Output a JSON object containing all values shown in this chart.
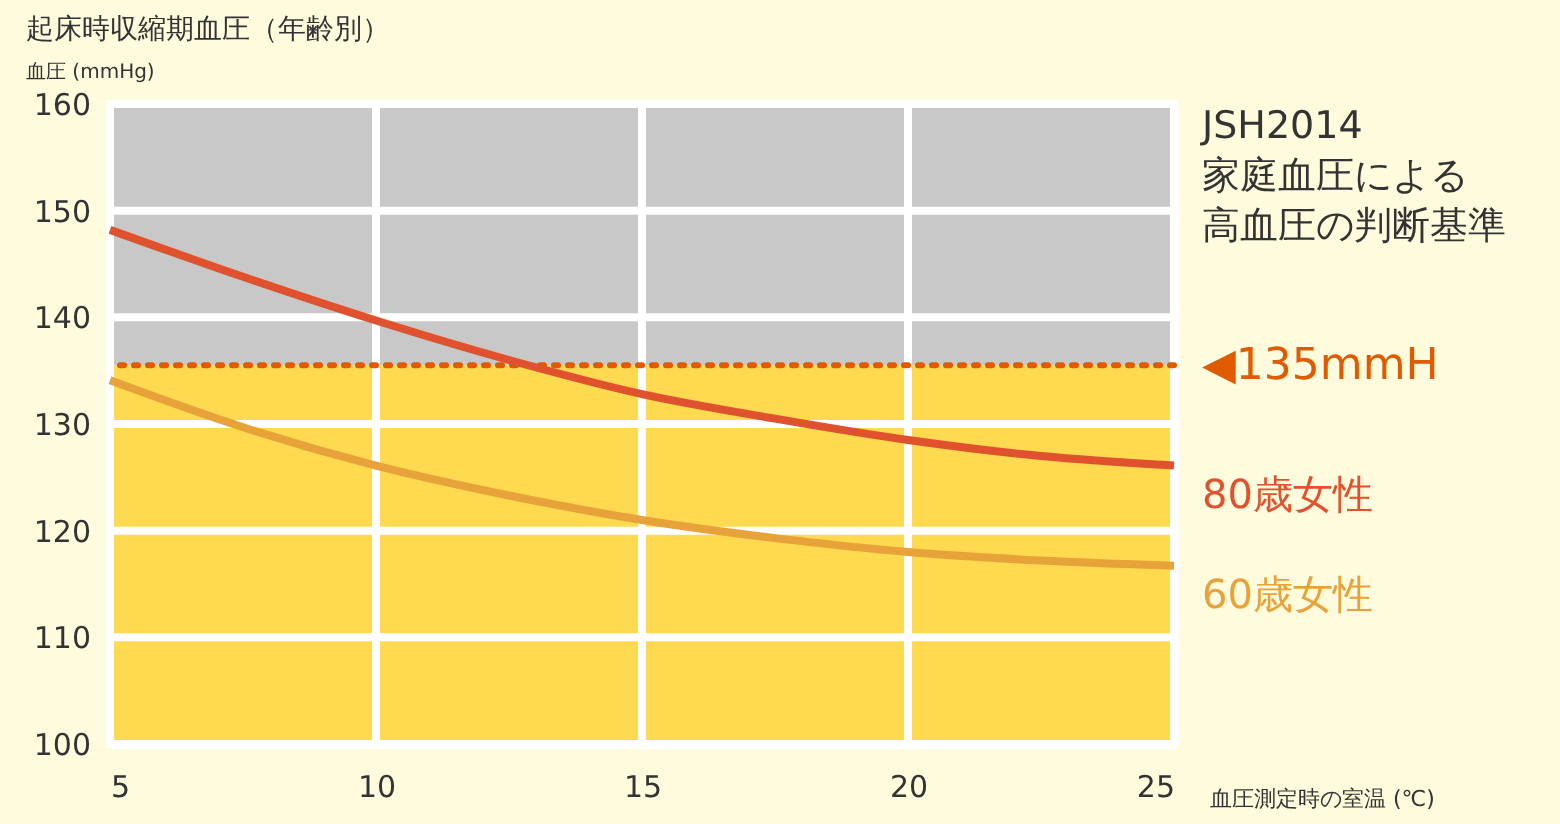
{
  "chart_data": {
    "type": "line",
    "title": "起床時収縮期血圧（年齢別）",
    "ylabel": "血圧 (mmHg)",
    "xlabel": "血圧測定時の室温 (℃)",
    "x": [
      5,
      7.5,
      10,
      12.5,
      15,
      17.5,
      20,
      22.5,
      25
    ],
    "series": [
      {
        "name": "80歳女性",
        "color": "#e0522e",
        "values": [
          148.2,
          143.8,
          139.7,
          136,
          132.8,
          130.5,
          128.5,
          127,
          126.1
        ]
      },
      {
        "name": "60歳女性",
        "color": "#e8a23a",
        "values": [
          134.1,
          129.7,
          126.1,
          123.3,
          121,
          119.3,
          118,
          117.2,
          116.7
        ]
      }
    ],
    "xlim": [
      5,
      25
    ],
    "xticks": [
      5,
      10,
      15,
      20,
      25
    ],
    "ylim": [
      100,
      160
    ],
    "yticks": [
      100,
      110,
      120,
      130,
      140,
      150,
      160
    ],
    "bands": [
      {
        "axis": "y",
        "from": 135.5,
        "to": 160,
        "color": "#c8c8c8"
      },
      {
        "axis": "y",
        "from": 100,
        "to": 135.5,
        "color": "#ffd94f"
      }
    ],
    "ref_lines": [
      {
        "axis": "y",
        "value": 135.5,
        "label": "◀135mmH",
        "color": "#e05a00",
        "line_style": "dotted"
      }
    ],
    "annotations": [
      "JSH2014",
      "家庭血圧による",
      "高血圧の判断基準"
    ],
    "grid": true,
    "line_style": "solid",
    "marker": "none"
  }
}
